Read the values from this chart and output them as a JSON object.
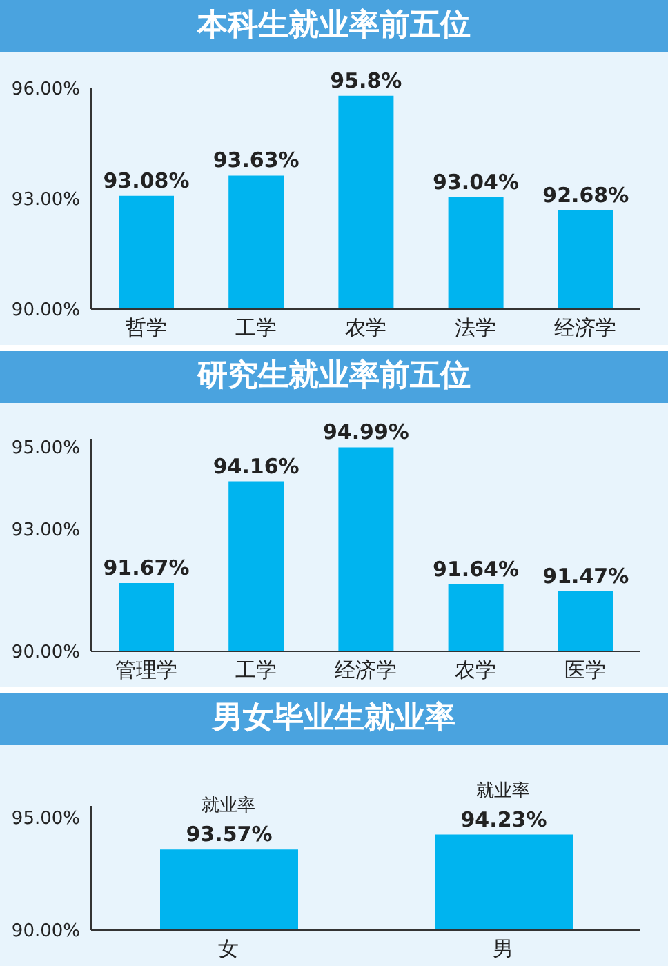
{
  "chart_data": [
    {
      "type": "bar",
      "title": "本科生就业率前五位",
      "categories": [
        "哲学",
        "工学",
        "农学",
        "法学",
        "经济学"
      ],
      "values": [
        93.08,
        93.63,
        95.8,
        93.04,
        92.68
      ],
      "value_labels": [
        "93.08%",
        "93.63%",
        "95.8%",
        "93.04%",
        "92.68%"
      ],
      "color": "#00b4ef",
      "ylim": [
        90,
        96
      ],
      "yticks": [
        {
          "value": 90,
          "label": "90.00%"
        },
        {
          "value": 93,
          "label": "93.00%"
        },
        {
          "value": 96,
          "label": "96.00%"
        }
      ],
      "grid": false,
      "legend": false
    },
    {
      "type": "bar",
      "title": "研究生就业率前五位",
      "categories": [
        "管理学",
        "工学",
        "经济学",
        "农学",
        "医学"
      ],
      "values": [
        91.67,
        94.16,
        94.99,
        91.64,
        91.47
      ],
      "value_labels": [
        "91.67%",
        "94.16%",
        "94.99%",
        "91.64%",
        "91.47%"
      ],
      "color": "#00b4ef",
      "ylim": [
        90,
        95.2
      ],
      "yticks": [
        {
          "value": 90,
          "label": "90.00%"
        },
        {
          "value": 93,
          "label": "93.00%"
        },
        {
          "value": 95,
          "label": "95.00%"
        }
      ],
      "grid": false,
      "legend": false
    },
    {
      "type": "bar",
      "title": "男女毕业生就业率",
      "categories": [
        "女",
        "男"
      ],
      "values": [
        93.57,
        94.23
      ],
      "value_labels": [
        "93.57%",
        "94.23%"
      ],
      "color": "#00b4ef",
      "ylim": [
        90,
        95.5
      ],
      "yticks": [
        {
          "value": 90,
          "label": "90.00%"
        },
        {
          "value": 95,
          "label": "95.00%"
        }
      ],
      "grid": false,
      "legend": false,
      "annotations": [
        {
          "text": "就业率",
          "x": "女",
          "y": 93.57
        },
        {
          "text": "就业率",
          "x": "男",
          "y": 94.23
        }
      ]
    }
  ]
}
